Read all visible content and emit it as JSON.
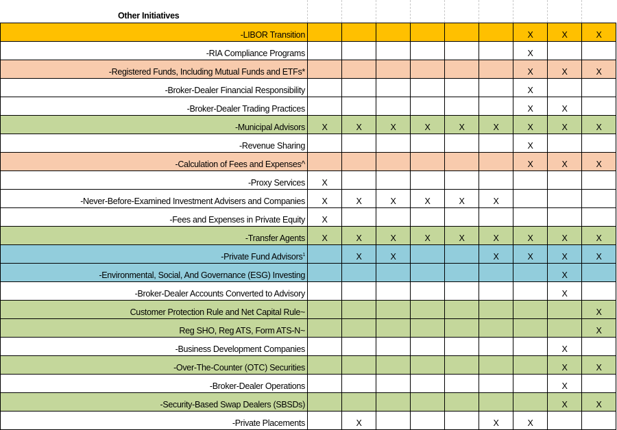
{
  "section_title": "Other Initiatives",
  "colors": {
    "gold": "#FFC000",
    "orange": "#F8CBAD",
    "green": "#C4D79B",
    "blue": "#92CDDC",
    "white": "#FFFFFF"
  },
  "mark": "X",
  "rows": [
    {
      "label": "-LIBOR Transition",
      "color": "gold",
      "marks": [
        0,
        0,
        0,
        0,
        0,
        0,
        1,
        1,
        1
      ]
    },
    {
      "label": "-RIA Compliance Programs",
      "color": "white",
      "marks": [
        0,
        0,
        0,
        0,
        0,
        0,
        1,
        0,
        0
      ]
    },
    {
      "label": "-Registered Funds, Including Mutual Funds and ETFs*",
      "color": "orange",
      "marks": [
        0,
        0,
        0,
        0,
        0,
        0,
        1,
        1,
        1
      ]
    },
    {
      "label": "-Broker-Dealer Financial Responsibility",
      "color": "white",
      "marks": [
        0,
        0,
        0,
        0,
        0,
        0,
        1,
        0,
        0
      ]
    },
    {
      "label": "-Broker-Dealer Trading Practices",
      "color": "white",
      "marks": [
        0,
        0,
        0,
        0,
        0,
        0,
        1,
        1,
        0
      ]
    },
    {
      "label": "-Municipal Advisors",
      "color": "green",
      "marks": [
        1,
        1,
        1,
        1,
        1,
        1,
        1,
        1,
        1
      ]
    },
    {
      "label": "-Revenue Sharing",
      "color": "white",
      "marks": [
        0,
        0,
        0,
        0,
        0,
        0,
        1,
        0,
        0
      ]
    },
    {
      "label": "-Calculation of Fees and Expenses^",
      "color": "orange",
      "marks": [
        0,
        0,
        0,
        0,
        0,
        0,
        1,
        1,
        1
      ]
    },
    {
      "label": "-Proxy Services",
      "color": "white",
      "marks": [
        1,
        0,
        0,
        0,
        0,
        0,
        0,
        0,
        0
      ]
    },
    {
      "label": "-Never-Before-Examined Investment Advisers and Companies",
      "color": "white",
      "marks": [
        1,
        1,
        1,
        1,
        1,
        1,
        0,
        0,
        0
      ]
    },
    {
      "label": "-Fees and Expenses in Private Equity",
      "color": "white",
      "marks": [
        1,
        0,
        0,
        0,
        0,
        0,
        0,
        0,
        0
      ]
    },
    {
      "label": "-Transfer Agents",
      "color": "green",
      "marks": [
        1,
        1,
        1,
        1,
        1,
        1,
        1,
        1,
        1
      ]
    },
    {
      "label": "-Private Fund Advisors",
      "sup": "1",
      "color": "blue",
      "marks": [
        0,
        1,
        1,
        0,
        0,
        1,
        1,
        1,
        1
      ]
    },
    {
      "label": "-Environmental, Social, And Governance (ESG) Investing",
      "color": "blue",
      "marks": [
        0,
        0,
        0,
        0,
        0,
        0,
        0,
        1,
        0
      ]
    },
    {
      "label": "-Broker-Dealer Accounts Converted to Advisory",
      "color": "white",
      "marks": [
        0,
        0,
        0,
        0,
        0,
        0,
        0,
        1,
        0
      ]
    },
    {
      "label": "Customer Protection Rule and Net Capital Rule~",
      "color": "green",
      "marks": [
        0,
        0,
        0,
        0,
        0,
        0,
        0,
        0,
        1
      ]
    },
    {
      "label": "Reg SHO, Reg ATS, Form ATS-N~",
      "color": "green",
      "marks": [
        0,
        0,
        0,
        0,
        0,
        0,
        0,
        0,
        1
      ]
    },
    {
      "label": "-Business Development Companies",
      "color": "white",
      "marks": [
        0,
        0,
        0,
        0,
        0,
        0,
        0,
        1,
        0
      ]
    },
    {
      "label": "-Over-The-Counter (OTC) Securities",
      "color": "green",
      "marks": [
        0,
        0,
        0,
        0,
        0,
        0,
        0,
        1,
        1
      ]
    },
    {
      "label": "-Broker-Dealer Operations",
      "color": "white",
      "marks": [
        0,
        0,
        0,
        0,
        0,
        0,
        0,
        1,
        0
      ]
    },
    {
      "label": "-Security-Based Swap Dealers (SBSDs)",
      "color": "green",
      "marks": [
        0,
        0,
        0,
        0,
        0,
        0,
        0,
        1,
        1
      ]
    },
    {
      "label": "-Private Placements",
      "color": "white",
      "marks": [
        0,
        1,
        0,
        0,
        0,
        1,
        1,
        0,
        0
      ]
    }
  ]
}
